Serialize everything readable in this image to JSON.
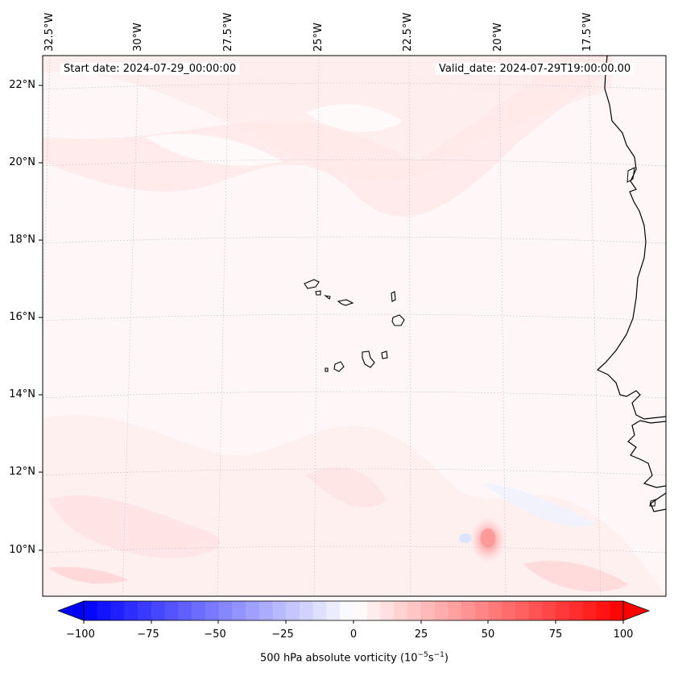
{
  "header": {
    "start_date": "Start date: 2024-07-29_00:00:00",
    "valid_date": "Valid_date: 2024-07-29T19:00:00.00"
  },
  "axes": {
    "lon_labels": [
      "32.5°W",
      "30°W",
      "27.5°W",
      "25°W",
      "22.5°W",
      "20°W",
      "17.5°W"
    ],
    "lat_labels": [
      "22°N",
      "20°N",
      "18°N",
      "16°N",
      "14°N",
      "12°N",
      "10°N"
    ]
  },
  "colorbar": {
    "ticks": [
      "−100",
      "−75",
      "−50",
      "−25",
      "0",
      "25",
      "50",
      "75",
      "100"
    ],
    "label_prefix": "500 hPa absolute vorticity (10",
    "label_exp1": "−5",
    "label_mid": "s",
    "label_exp2": "−1",
    "label_suffix": ")",
    "min": -100,
    "max": 100,
    "extend": "both",
    "cmap": "bwr"
  },
  "colors": {
    "land_coast": "#000000",
    "background_field": "#fff6f6"
  }
}
